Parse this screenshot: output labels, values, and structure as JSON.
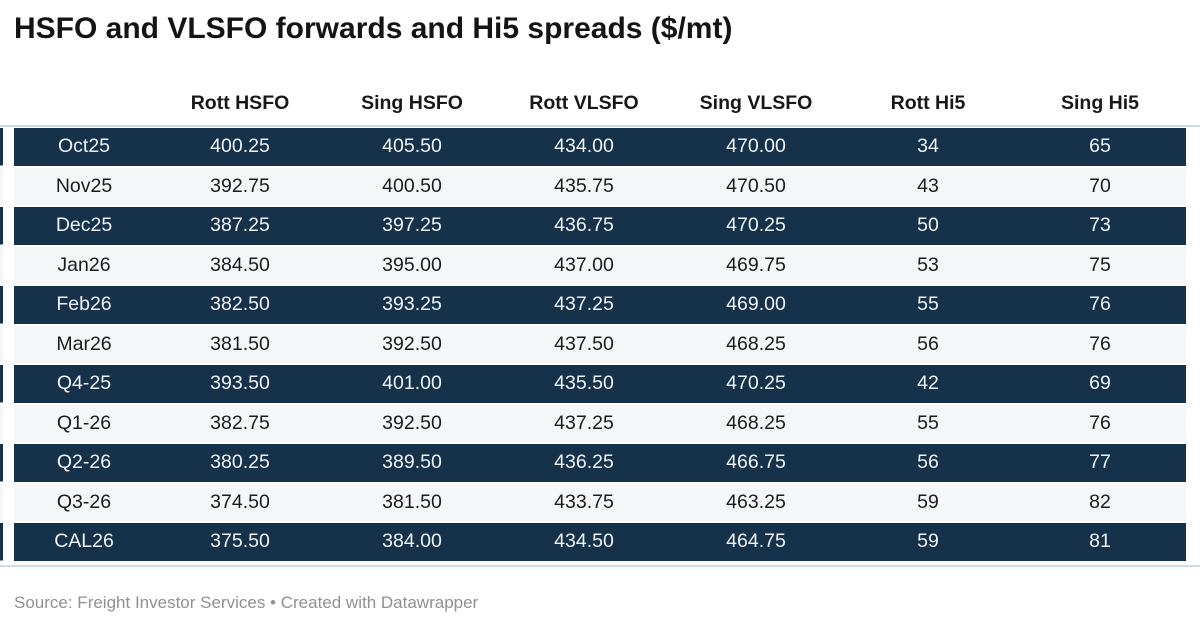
{
  "title": "HSFO and VLSFO forwards and Hi5 spreads ($/mt)",
  "colors": {
    "row_dark": "#16324a",
    "row_light": "#f5f6f7",
    "text_on_dark": "#eef3f6",
    "text_on_light": "#1c1c1c",
    "rule": "#d0dce4",
    "footer_text": "#909090"
  },
  "footer": {
    "source_text": "Source: Freight Investor Services",
    "separator": " • ",
    "credit": "Created with Datawrapper"
  },
  "chart_data": {
    "type": "table",
    "title": "HSFO and VLSFO forwards and Hi5 spreads ($/mt)",
    "columns": [
      "",
      "Rott HSFO",
      "Sing HSFO",
      "Rott VLSFO",
      "Sing VLSFO",
      "Rott Hi5",
      "Sing Hi5"
    ],
    "rows": [
      {
        "label": "Oct25",
        "values": [
          "400.25",
          "405.50",
          "434.00",
          "470.00",
          "34",
          "65"
        ]
      },
      {
        "label": "Nov25",
        "values": [
          "392.75",
          "400.50",
          "435.75",
          "470.50",
          "43",
          "70"
        ]
      },
      {
        "label": "Dec25",
        "values": [
          "387.25",
          "397.25",
          "436.75",
          "470.25",
          "50",
          "73"
        ]
      },
      {
        "label": "Jan26",
        "values": [
          "384.50",
          "395.00",
          "437.00",
          "469.75",
          "53",
          "75"
        ]
      },
      {
        "label": "Feb26",
        "values": [
          "382.50",
          "393.25",
          "437.25",
          "469.00",
          "55",
          "76"
        ]
      },
      {
        "label": "Mar26",
        "values": [
          "381.50",
          "392.50",
          "437.50",
          "468.25",
          "56",
          "76"
        ]
      },
      {
        "label": "Q4-25",
        "values": [
          "393.50",
          "401.00",
          "435.50",
          "470.25",
          "42",
          "69"
        ]
      },
      {
        "label": "Q1-26",
        "values": [
          "382.75",
          "392.50",
          "437.25",
          "468.25",
          "55",
          "76"
        ]
      },
      {
        "label": "Q2-26",
        "values": [
          "380.25",
          "389.50",
          "436.25",
          "466.75",
          "56",
          "77"
        ]
      },
      {
        "label": "Q3-26",
        "values": [
          "374.50",
          "381.50",
          "433.75",
          "463.25",
          "59",
          "82"
        ]
      },
      {
        "label": "CAL26",
        "values": [
          "375.50",
          "384.00",
          "434.50",
          "464.75",
          "59",
          "81"
        ]
      }
    ]
  }
}
